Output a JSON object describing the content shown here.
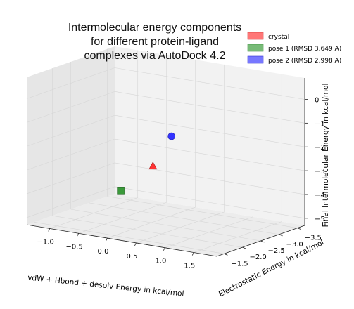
{
  "chart_data": {
    "type": "scatter",
    "projection": "3d",
    "title_lines": [
      "Intermolecular energy components",
      "for different protein-ligand",
      "complexes via AutoDock 4.2"
    ],
    "xlabel": "vdW + Hbond + desolv Energy in kcal/mol",
    "ylabel": "Electrostatic Energy in kcal/mol",
    "zlabel": "Final Intermolecular Energy in kcal/mol",
    "xlim": [
      -1.4,
      1.9
    ],
    "ylim": [
      -3.7,
      -1.3
    ],
    "zlim": [
      -5.3,
      0.9
    ],
    "x_ticks": [
      "−1.0",
      "−0.5",
      "0.0",
      "0.5",
      "1.0",
      "1.5"
    ],
    "x_tick_values": [
      -1.0,
      -0.5,
      0.0,
      0.5,
      1.0,
      1.5
    ],
    "y_ticks": [
      "−3.5",
      "−3.0",
      "−2.5",
      "−2.0",
      "−1.5"
    ],
    "y_tick_values": [
      -3.5,
      -3.0,
      -2.5,
      -2.0,
      -1.5
    ],
    "z_ticks": [
      "−5",
      "−4",
      "−3",
      "−2",
      "−1",
      "0"
    ],
    "z_tick_values": [
      -5,
      -4,
      -3,
      -2,
      -1,
      0
    ],
    "grid": true,
    "legend_position": "top-right",
    "series": [
      {
        "name": "crystal",
        "color": "#ff3333",
        "marker": "triangle",
        "x": 0.6,
        "y": -1.6,
        "z": -2.2
      },
      {
        "name": "pose 1 (RMSD 3.649 A)",
        "color": "#3a9a3a",
        "marker": "square",
        "x": -1.2,
        "y": -3.55,
        "z": -5.0
      },
      {
        "name": "pose 2 (RMSD 2.998 A)",
        "color": "#3333ff",
        "marker": "circle",
        "x": 1.05,
        "y": -1.4,
        "z": -0.65
      }
    ]
  }
}
